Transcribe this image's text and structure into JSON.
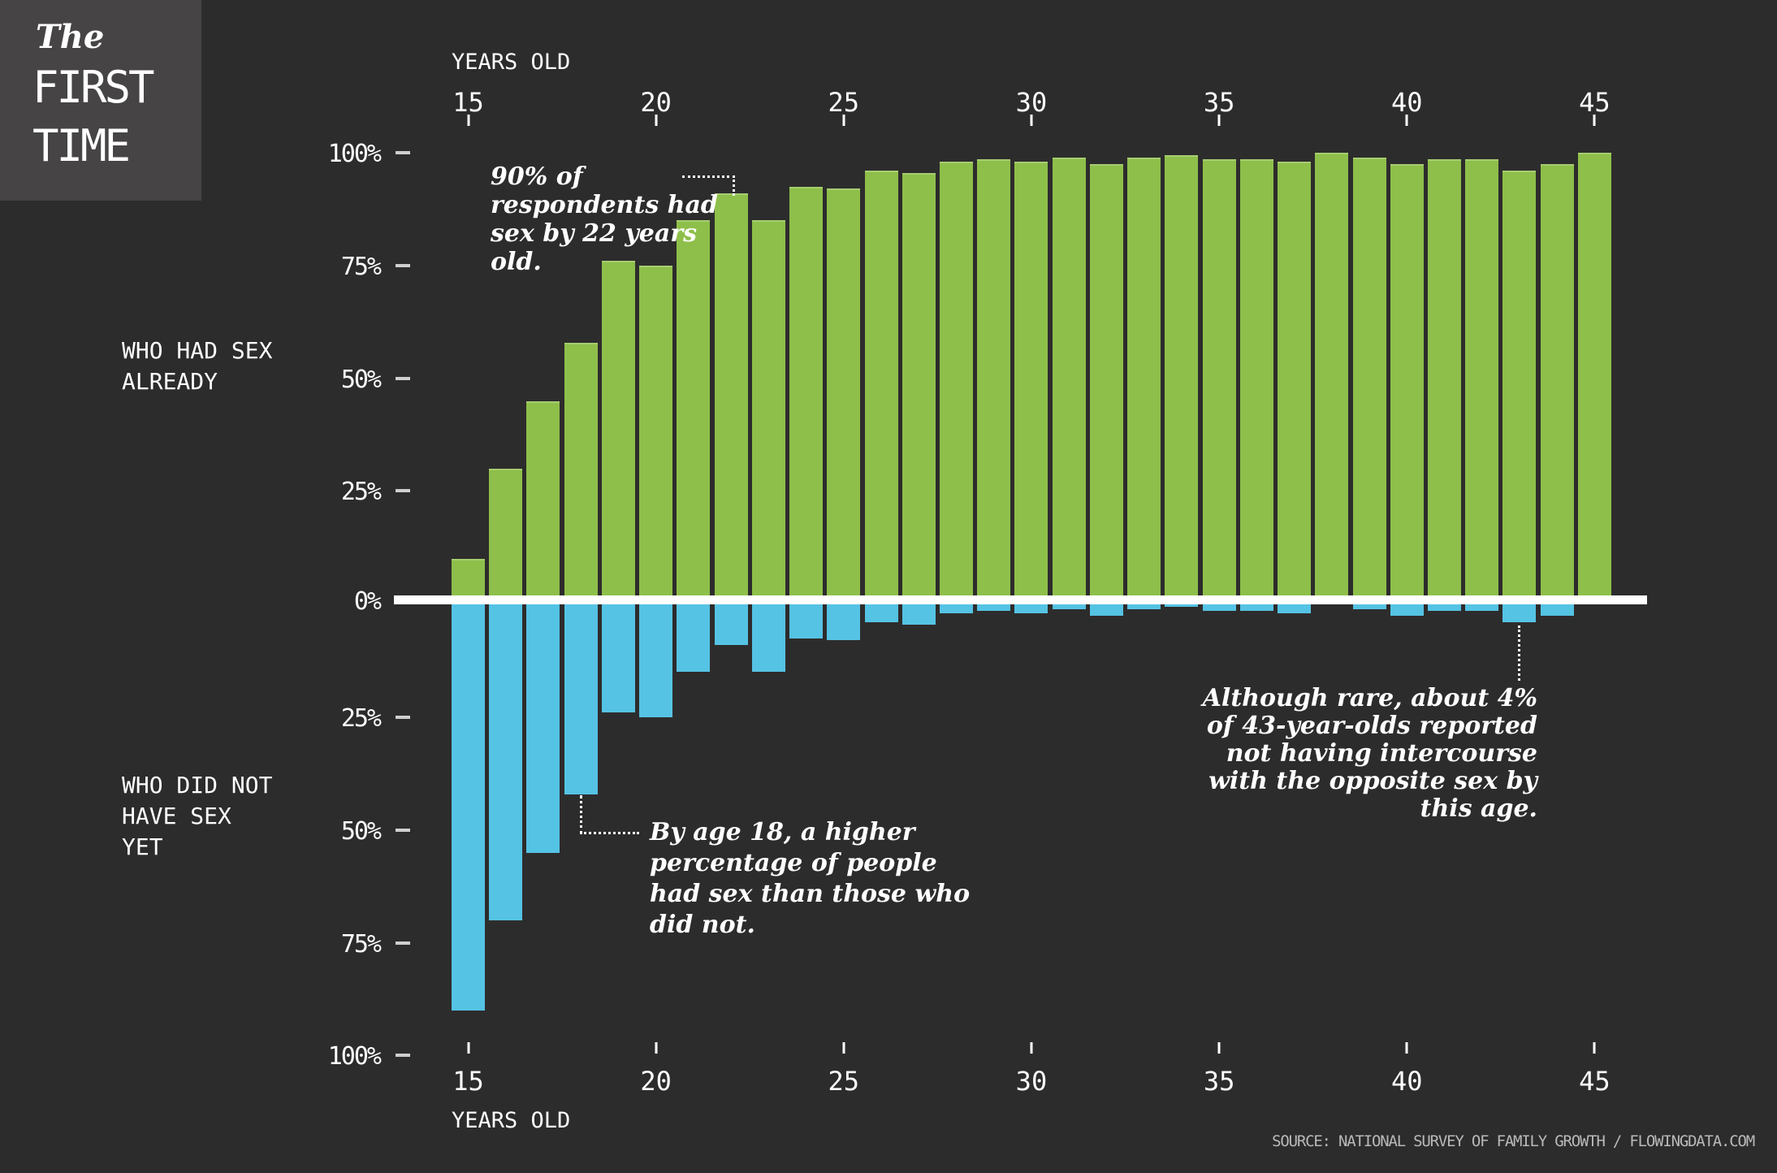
{
  "title": {
    "prefix": "The",
    "line1": "FIRST",
    "line2": "TIME"
  },
  "axis_top": {
    "label": "YEARS OLD",
    "ticks": [
      "15",
      "20",
      "25",
      "30",
      "35",
      "40",
      "45"
    ]
  },
  "axis_bottom": {
    "label": "YEARS OLD",
    "ticks": [
      "15",
      "20",
      "25",
      "30",
      "35",
      "40",
      "45"
    ]
  },
  "y_axis": {
    "top_ticks": [
      "100%",
      "75%",
      "50%",
      "25%",
      "0%"
    ],
    "bottom_ticks": [
      "25%",
      "50%",
      "75%",
      "100%"
    ]
  },
  "series_labels": {
    "had": "WHO HAD SEX\nALREADY",
    "not": "WHO DID NOT\nHAVE SEX\nYET"
  },
  "annotations": {
    "by22": "90% of\nrespondents had\nsex by 22 years\nold.",
    "age18": "By age 18, a higher\npercentage of people\nhad sex than those who\ndid not.",
    "age43": "Although rare, about 4%\nof 43-year-olds reported\nnot having intercourse\nwith the opposite sex by\nthis age."
  },
  "source": "SOURCE: NATIONAL SURVEY OF FAMILY GROWTH / FLOWINGDATA.COM",
  "colors": {
    "background": "#2d2c2c",
    "title_box": "#464444",
    "had_sex_green": "#8ebf4a",
    "not_yet_blue": "#55c3e4",
    "zero_line": "#ffffff",
    "tick_dash": "#cfcfcf",
    "source_gray": "#b9b9b9"
  },
  "chart_data": {
    "type": "bar",
    "subtype": "diverging",
    "title": "The FIRST TIME",
    "xlabel": "YEARS OLD",
    "x": [
      15,
      16,
      17,
      18,
      19,
      20,
      21,
      22,
      23,
      24,
      25,
      26,
      27,
      28,
      29,
      30,
      31,
      32,
      33,
      34,
      35,
      36,
      37,
      38,
      39,
      40,
      41,
      42,
      43,
      44,
      45
    ],
    "series": [
      {
        "name": "WHO HAD SEX ALREADY",
        "direction": "up",
        "color": "#8ebf4a",
        "values": [
          10,
          30,
          45,
          58,
          76,
          75,
          85,
          91,
          85,
          92.5,
          92,
          96,
          95.5,
          98,
          98.5,
          98,
          99,
          97.5,
          99,
          99.5,
          98.5,
          98.5,
          98,
          100,
          99,
          97.5,
          98.5,
          98.5,
          96,
          97.5,
          100
        ]
      },
      {
        "name": "WHO DID NOT HAVE SEX YET",
        "direction": "down",
        "color": "#55c3e4",
        "values": [
          90,
          70,
          55,
          42,
          24,
          25,
          15,
          9,
          15,
          7.5,
          8,
          4,
          4.5,
          2,
          1.5,
          2,
          1,
          2.5,
          1,
          0.5,
          1.5,
          1.5,
          2,
          0,
          1,
          2.5,
          1.5,
          1.5,
          4,
          2.5,
          0
        ]
      }
    ],
    "ylim": [
      -100,
      100
    ],
    "y_tick_step_percent": 25,
    "x_tick_step_years": 5,
    "grid": false,
    "legend_position": "left-margin-labels"
  }
}
